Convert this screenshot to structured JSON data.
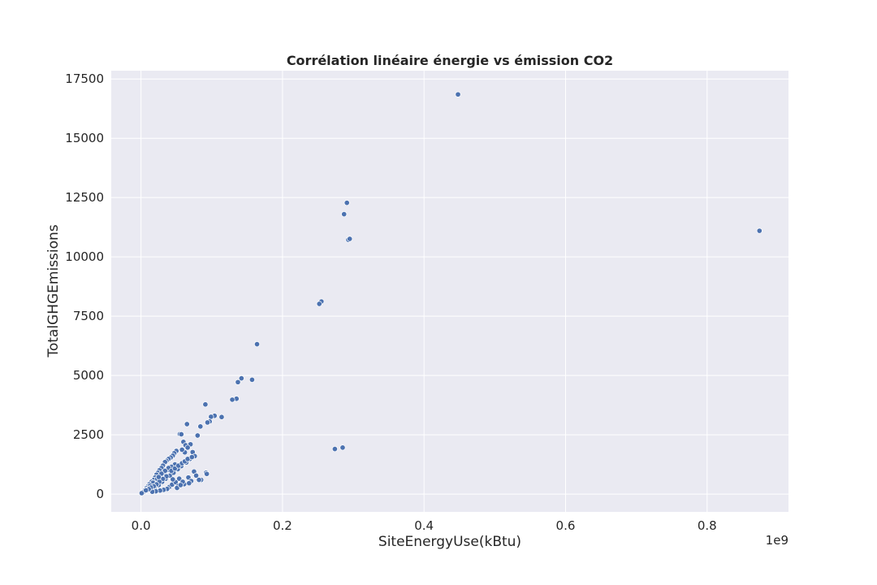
{
  "chart_data": {
    "type": "scatter",
    "title": "Corrélation linéaire énergie vs émission CO2",
    "xlabel": "SiteEnergyUse(kBtu)",
    "ylabel": "TotalGHGEmissions",
    "x_offset_label": "1e9",
    "x_scale": 1000000000,
    "xlim": [
      -0.042,
      0.915
    ],
    "ylim": [
      -750,
      17850
    ],
    "xticks": [
      0.0,
      0.2,
      0.4,
      0.6,
      0.8
    ],
    "xtick_labels": [
      "0.0",
      "0.2",
      "0.4",
      "0.6",
      "0.8"
    ],
    "yticks": [
      0,
      2500,
      5000,
      7500,
      10000,
      12500,
      15000,
      17500
    ],
    "ytick_labels": [
      "0",
      "2500",
      "5000",
      "7500",
      "10000",
      "12500",
      "15000",
      "17500"
    ],
    "grid": true,
    "colors": {
      "background": "#eaeaf2",
      "grid": "#ffffff",
      "marker": "#4c72b0",
      "marker_edge": "#ffffff"
    },
    "series": [
      {
        "x": [
          0.448,
          0.874,
          0.291,
          0.287,
          0.293,
          0.295,
          0.255,
          0.252,
          0.164,
          0.157,
          0.142,
          0.137,
          0.135,
          0.129,
          0.091,
          0.104,
          0.099,
          0.097,
          0.094,
          0.114,
          0.274,
          0.285,
          0.084,
          0.08,
          0.065,
          0.055,
          0.057,
          0.06,
          0.063,
          0.07,
          0.073,
          0.066,
          0.062,
          0.058,
          0.05,
          0.047,
          0.045,
          0.042,
          0.039,
          0.036,
          0.034,
          0.031,
          0.029,
          0.026,
          0.024,
          0.022,
          0.02,
          0.018,
          0.015,
          0.012,
          0.01,
          0.008,
          0.005,
          0.003,
          0.001,
          0.019,
          0.025,
          0.03,
          0.035,
          0.041,
          0.046,
          0.052,
          0.057,
          0.064,
          0.069,
          0.076,
          0.085,
          0.092,
          0.093,
          0.075,
          0.067,
          0.054,
          0.048,
          0.043,
          0.038,
          0.033,
          0.028,
          0.023,
          0.017,
          0.013,
          0.009,
          0.04,
          0.044,
          0.049,
          0.053,
          0.037,
          0.032,
          0.027,
          0.021,
          0.016,
          0.061,
          0.071,
          0.078,
          0.082,
          0.068,
          0.059,
          0.051,
          0.056,
          0.045,
          0.036,
          0.031,
          0.026,
          0.022,
          0.018,
          0.014,
          0.011,
          0.007,
          0.039,
          0.034,
          0.029,
          0.025,
          0.043,
          0.048,
          0.053,
          0.058,
          0.062,
          0.066,
          0.072
        ],
        "y": [
          16850,
          11100,
          12280,
          11800,
          10720,
          10760,
          8120,
          8020,
          6320,
          4820,
          4880,
          4720,
          4020,
          3980,
          3780,
          3300,
          3260,
          3060,
          3020,
          3250,
          1900,
          1960,
          2850,
          2470,
          2950,
          2530,
          2520,
          2200,
          2060,
          2100,
          1770,
          1960,
          1760,
          1870,
          1820,
          1720,
          1620,
          1540,
          1480,
          1400,
          1350,
          1200,
          1100,
          1000,
          900,
          820,
          700,
          600,
          520,
          420,
          330,
          250,
          150,
          80,
          40,
          250,
          380,
          520,
          650,
          780,
          900,
          1050,
          1180,
          1330,
          1480,
          1600,
          600,
          900,
          850,
          950,
          700,
          650,
          1250,
          1150,
          1020,
          880,
          760,
          640,
          480,
          360,
          200,
          300,
          400,
          500,
          350,
          220,
          180,
          150,
          120,
          100,
          420,
          550,
          780,
          600,
          460,
          520,
          260,
          380,
          620,
          750,
          640,
          520,
          410,
          330,
          280,
          210,
          160,
          1100,
          980,
          860,
          720,
          980,
          1080,
          1200,
          1300,
          1380,
          1480,
          1560
        ]
      }
    ]
  }
}
